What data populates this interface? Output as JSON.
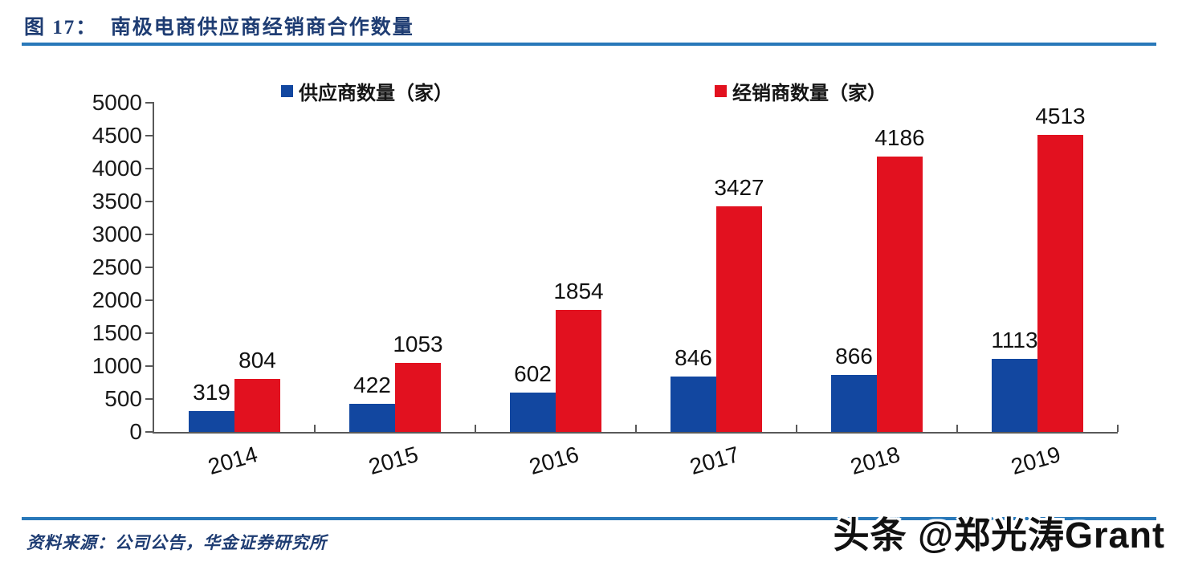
{
  "header": {
    "title": "图 17：  南极电商供应商经销商合作数量"
  },
  "colors": {
    "supplier": "#1247a0",
    "distributor": "#e2111f",
    "title_text": "#1f3d73",
    "rule": "#2878b9",
    "axis": "#595959",
    "label_text": "#111111"
  },
  "chart_data": {
    "type": "bar",
    "categories": [
      "2014",
      "2015",
      "2016",
      "2017",
      "2018",
      "2019"
    ],
    "series": [
      {
        "name": "供应商数量（家）",
        "color_key": "supplier",
        "values": [
          319,
          422,
          602,
          846,
          866,
          1113
        ]
      },
      {
        "name": "经销商数量（家）",
        "color_key": "distributor",
        "values": [
          804,
          1053,
          1854,
          3427,
          4186,
          4513
        ]
      }
    ],
    "ylim": [
      0,
      5000
    ],
    "ytick_step": 500,
    "grid": false,
    "legend_position": "top",
    "data_labels": true
  },
  "footer": {
    "source": "资料来源：公司公告，华金证券研究所",
    "watermark": "头条 @郑光涛Grant"
  }
}
